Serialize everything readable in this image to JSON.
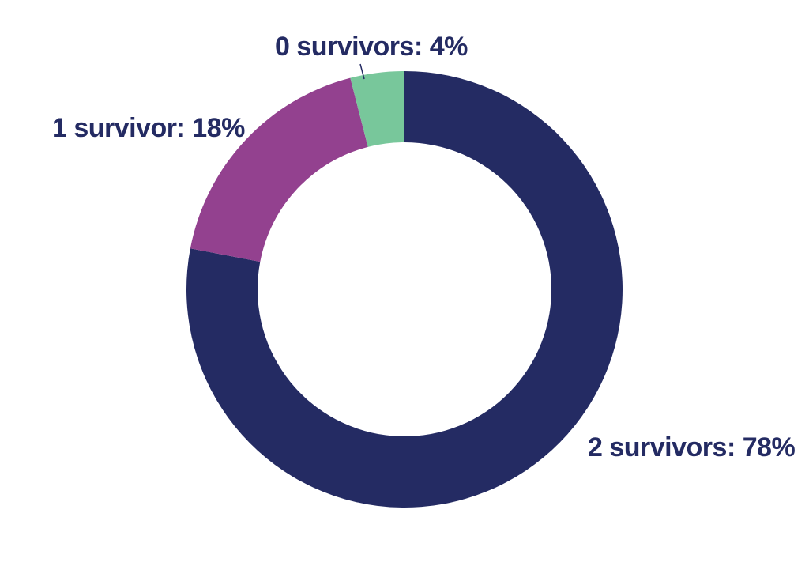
{
  "chart_data": {
    "type": "pie",
    "style": "donut",
    "categories": [
      "2 survivors",
      "1 survivor",
      "0 survivors"
    ],
    "values": [
      78,
      18,
      4
    ],
    "unit": "%",
    "colors": [
      "#242b63",
      "#93418f",
      "#78c79b"
    ],
    "labels": [
      "2 survivors: 78%",
      "1 survivor: 18%",
      "0 survivors: 4%"
    ],
    "label_color": "#242b63"
  }
}
